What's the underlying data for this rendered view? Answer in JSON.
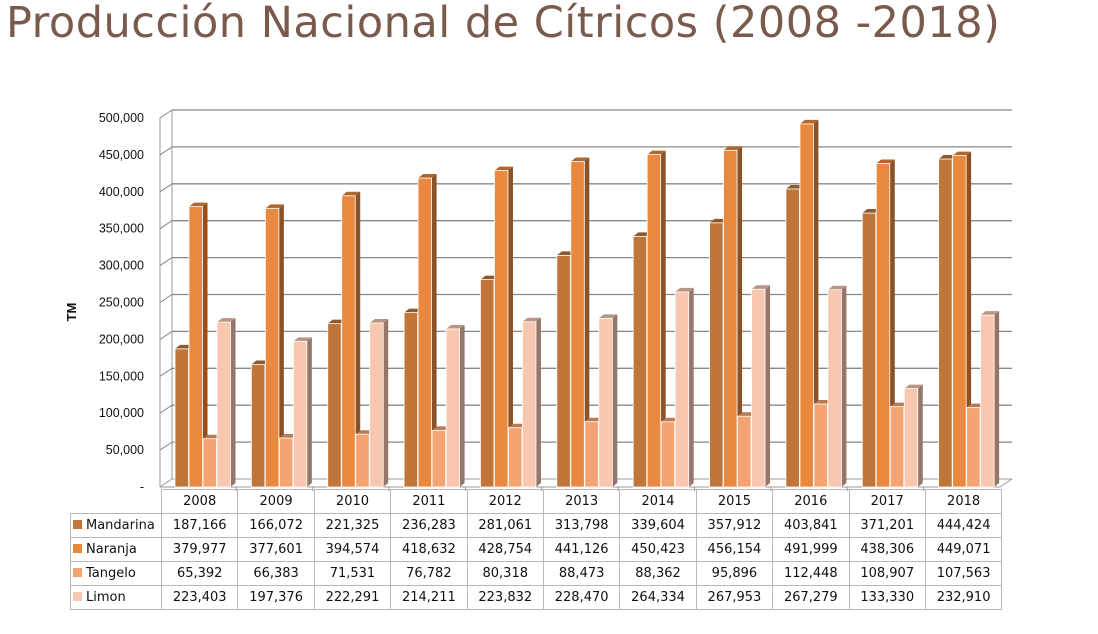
{
  "title": "Producción Nacional de Cítricos (2008 -2018)",
  "chart_data": {
    "type": "bar",
    "style": "3d-clustered-column-with-data-table",
    "title": "Producción Nacional de Cítricos (2008 -2018)",
    "xlabel": "",
    "ylabel": "TM",
    "ylim": [
      0,
      500000
    ],
    "yticks": [
      "-",
      "50,000",
      "100,000",
      "150,000",
      "200,000",
      "250,000",
      "300,000",
      "350,000",
      "400,000",
      "450,000",
      "500,000"
    ],
    "grid": true,
    "legend": "data-table-left",
    "categories": [
      "2008",
      "2009",
      "2010",
      "2011",
      "2012",
      "2013",
      "2014",
      "2015",
      "2016",
      "2017",
      "2018"
    ],
    "series": [
      {
        "name": "Mandarina",
        "color": "#c0763a",
        "values": [
          187166,
          166072,
          221325,
          236283,
          281061,
          313798,
          339604,
          357912,
          403841,
          371201,
          444424
        ],
        "labels": [
          "187,166",
          "166,072",
          "221,325",
          "236,283",
          "281,061",
          "313,798",
          "339,604",
          "357,912",
          "403,841",
          "371,201",
          "444,424"
        ]
      },
      {
        "name": "Naranja",
        "color": "#e8893f",
        "values": [
          379977,
          377601,
          394574,
          418632,
          428754,
          441126,
          450423,
          456154,
          491999,
          438306,
          449071
        ],
        "labels": [
          "379,977",
          "377,601",
          "394,574",
          "418,632",
          "428,754",
          "441,126",
          "450,423",
          "456,154",
          "491,999",
          "438,306",
          "449,071"
        ]
      },
      {
        "name": "Tangelo",
        "color": "#f4a472",
        "values": [
          65392,
          66383,
          71531,
          76782,
          80318,
          88473,
          88362,
          95896,
          112448,
          108907,
          107563
        ],
        "labels": [
          "65,392",
          "66,383",
          "71,531",
          "76,782",
          "80,318",
          "88,473",
          "88,362",
          "95,896",
          "112,448",
          "108,907",
          "107,563"
        ]
      },
      {
        "name": "Limon",
        "color": "#f8c7b0",
        "values": [
          223403,
          197376,
          222291,
          214211,
          223832,
          228470,
          264334,
          267953,
          267279,
          133330,
          232910
        ],
        "labels": [
          "223,403",
          "197,376",
          "222,291",
          "214,211",
          "223,832",
          "228,470",
          "264,334",
          "267,953",
          "267,279",
          "133,330",
          "232,910"
        ]
      }
    ]
  }
}
